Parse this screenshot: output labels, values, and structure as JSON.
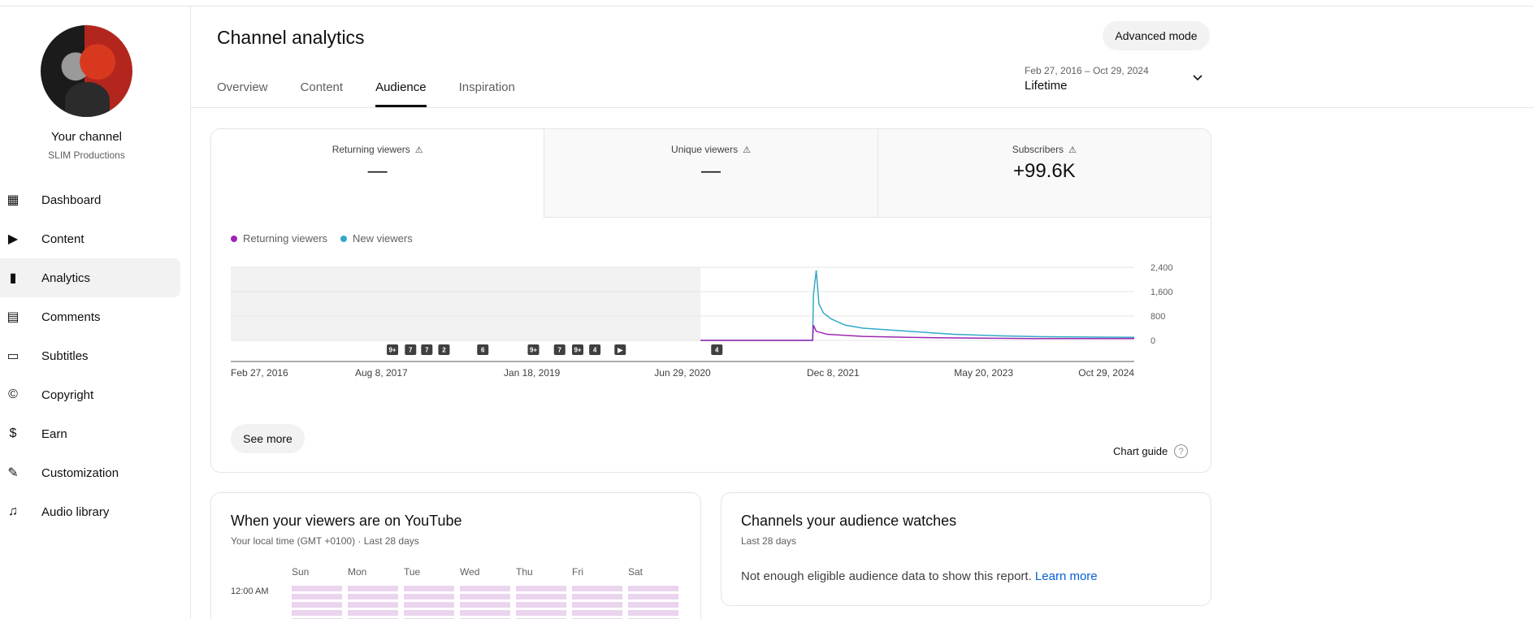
{
  "sidebar": {
    "channel_name": "Your channel",
    "channel_subtitle": "SLIM Productions",
    "items": [
      {
        "label": "Dashboard",
        "icon": "dashboard-icon"
      },
      {
        "label": "Content",
        "icon": "content-icon"
      },
      {
        "label": "Analytics",
        "icon": "analytics-icon",
        "active": true
      },
      {
        "label": "Comments",
        "icon": "comments-icon"
      },
      {
        "label": "Subtitles",
        "icon": "subtitles-icon"
      },
      {
        "label": "Copyright",
        "icon": "copyright-icon"
      },
      {
        "label": "Earn",
        "icon": "earn-icon"
      },
      {
        "label": "Customization",
        "icon": "customization-icon"
      },
      {
        "label": "Audio library",
        "icon": "audio-library-icon"
      }
    ]
  },
  "header": {
    "title": "Channel analytics",
    "advanced_mode_label": "Advanced mode",
    "tabs": [
      "Overview",
      "Content",
      "Audience",
      "Inspiration"
    ],
    "active_tab": "Audience",
    "date_range": "Feb 27, 2016 – Oct 29, 2024",
    "date_preset": "Lifetime"
  },
  "metrics": [
    {
      "label": "Returning viewers",
      "value": "—"
    },
    {
      "label": "Unique viewers",
      "value": "—"
    },
    {
      "label": "Subscribers",
      "value": "+99.6K"
    }
  ],
  "chart_data": {
    "type": "line",
    "series": [
      {
        "name": "Returning viewers",
        "color": "#9c27b0"
      },
      {
        "name": "New viewers",
        "color": "#33a8c7"
      }
    ],
    "x_tick_labels": [
      "Feb 27, 2016",
      "Aug 8, 2017",
      "Jan 18, 2019",
      "Jun 29, 2020",
      "Dec 8, 2021",
      "May 20, 2023",
      "Oct 29, 2024"
    ],
    "y_tick_labels": [
      "2,400",
      "1,600",
      "800",
      "0"
    ],
    "ylim": [
      0,
      2400
    ],
    "data_start_fraction": 0.52,
    "points_returning": [
      [
        0.52,
        0
      ],
      [
        0.644,
        0
      ],
      [
        0.645,
        500
      ],
      [
        0.648,
        300
      ],
      [
        0.66,
        200
      ],
      [
        0.7,
        130
      ],
      [
        0.75,
        100
      ],
      [
        0.8,
        80
      ],
      [
        0.9,
        60
      ],
      [
        1.0,
        60
      ]
    ],
    "points_new": [
      [
        0.52,
        0
      ],
      [
        0.644,
        0
      ],
      [
        0.645,
        1500
      ],
      [
        0.648,
        2300
      ],
      [
        0.651,
        1200
      ],
      [
        0.656,
        900
      ],
      [
        0.665,
        700
      ],
      [
        0.68,
        500
      ],
      [
        0.7,
        400
      ],
      [
        0.75,
        300
      ],
      [
        0.8,
        200
      ],
      [
        0.85,
        150
      ],
      [
        0.9,
        120
      ],
      [
        1.0,
        100
      ]
    ],
    "markers": [
      "9+",
      "7",
      "7",
      "2",
      "6",
      "9+",
      "7",
      "9+",
      "4",
      "▶",
      "4"
    ],
    "grid": true
  },
  "see_more_label": "See more",
  "chart_guide_label": "Chart guide",
  "when_card": {
    "title": "When your viewers are on YouTube",
    "subtitle": "Your local time (GMT +0100) · Last 28 days",
    "days": [
      "Sun",
      "Mon",
      "Tue",
      "Wed",
      "Thu",
      "Fri",
      "Sat"
    ],
    "first_time": "12:00 AM"
  },
  "channels_card": {
    "title": "Channels your audience watches",
    "subtitle": "Last 28 days",
    "message": "Not enough eligible audience data to show this report.",
    "link": "Learn more"
  }
}
